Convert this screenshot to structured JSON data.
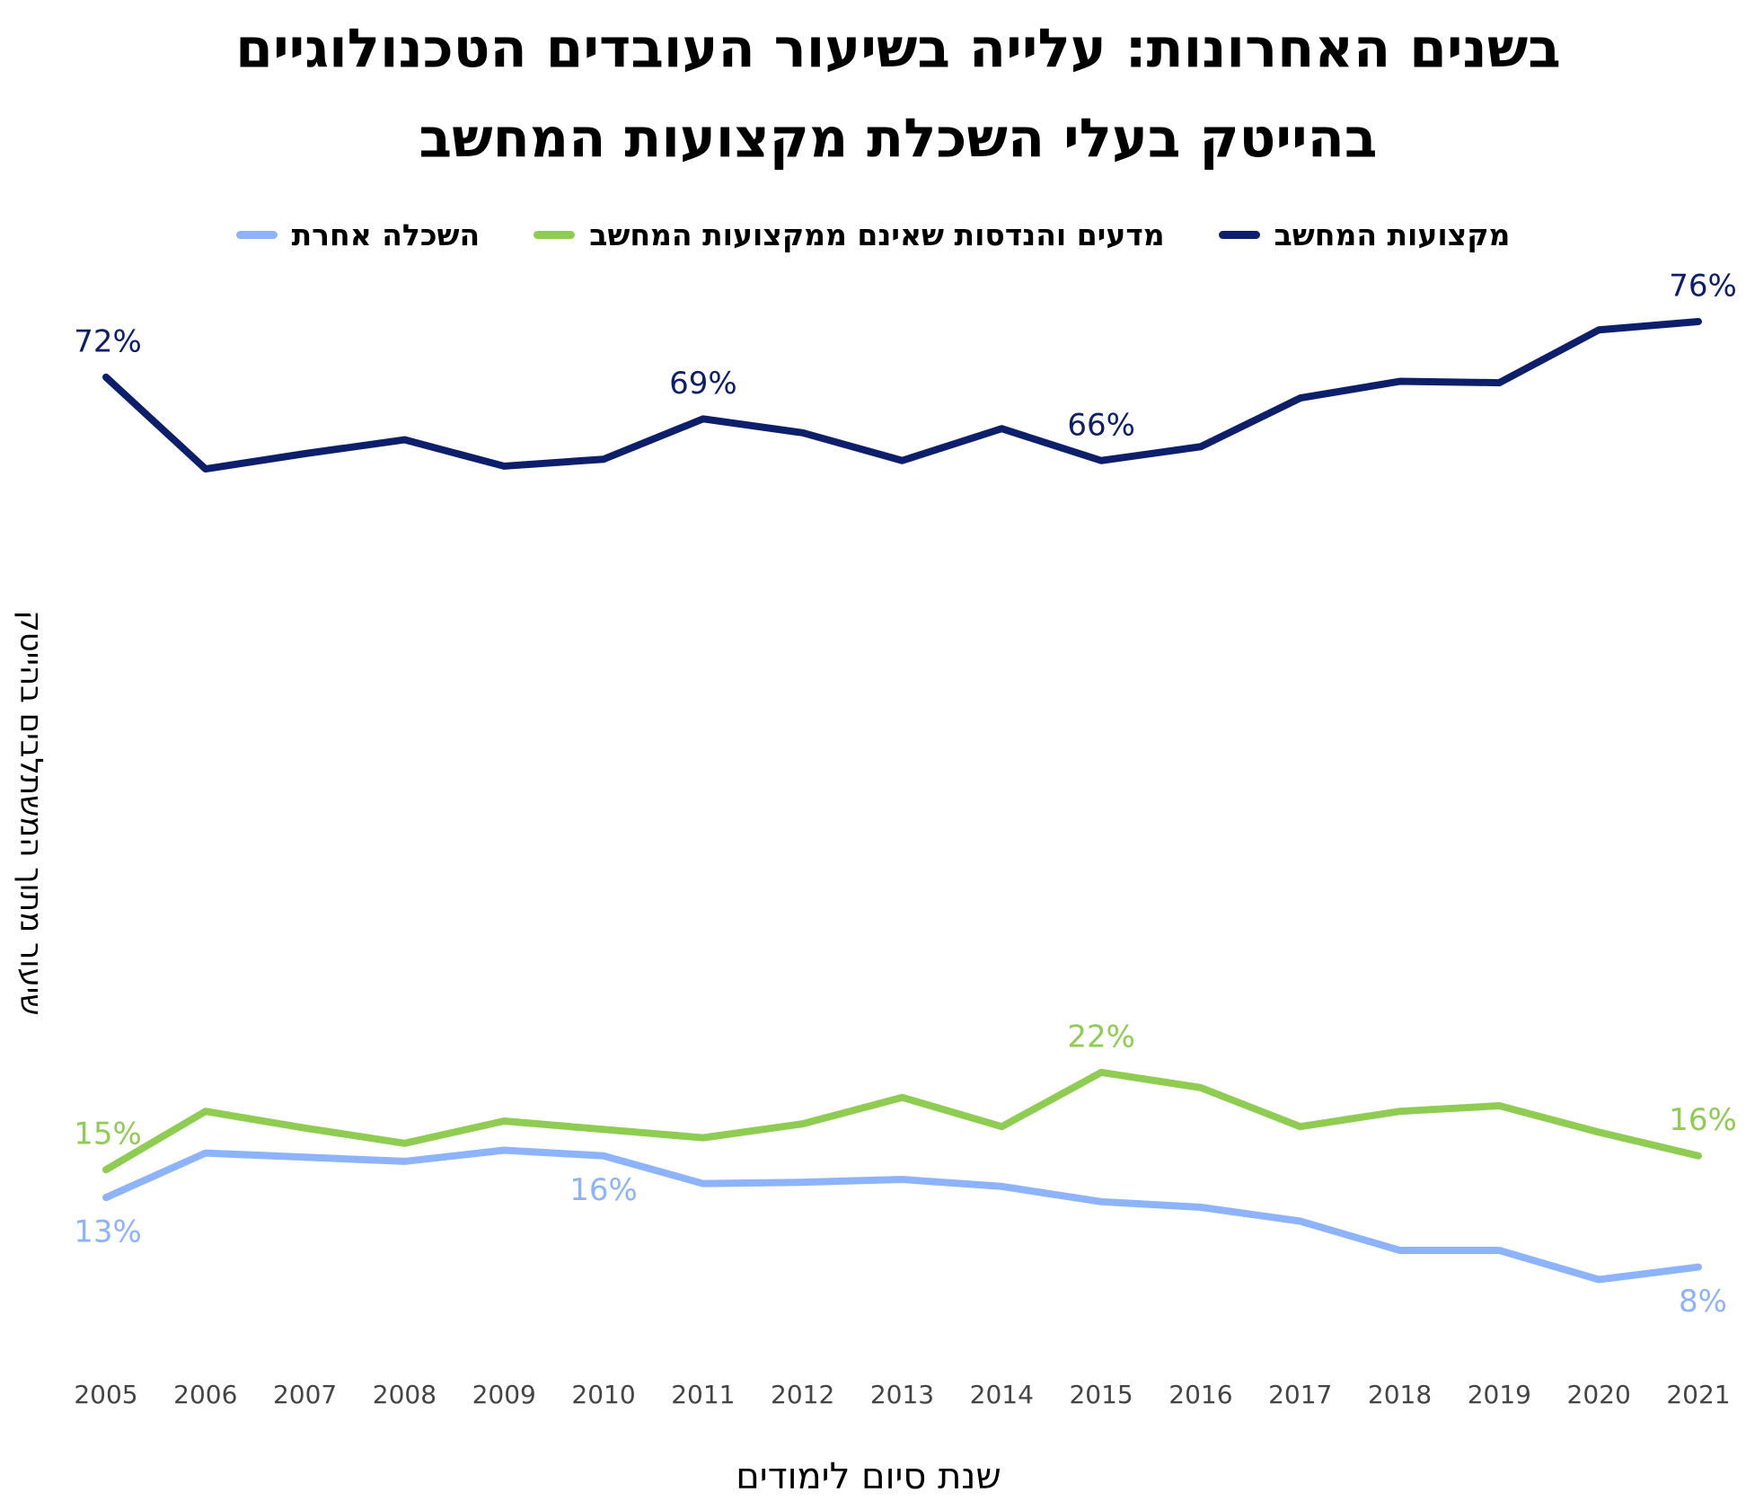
{
  "chart_data": {
    "type": "line",
    "title": [
      "בשנים האחרונות: עלייה בשיעור העובדים הטכנולוגיים",
      "בהייטק בעלי השכלת מקצועות המחשב"
    ],
    "x_label": "שנת סיום לימודים",
    "y_label": "שיעור מתוך המשתלבים בהייטק",
    "categories": [
      "2005",
      "2006",
      "2007",
      "2008",
      "2009",
      "2010",
      "2011",
      "2012",
      "2013",
      "2014",
      "2015",
      "2016",
      "2017",
      "2018",
      "2019",
      "2020",
      "2021"
    ],
    "ylim": [
      5,
      78
    ],
    "series": [
      {
        "name": "מקצועות המחשב",
        "color": "#0d1f6b",
        "label_side": "above",
        "values": [
          72,
          65.4,
          66.5,
          67.5,
          65.6,
          66.1,
          69,
          68,
          66,
          68.3,
          66,
          67,
          70.5,
          71.7,
          71.6,
          75.4,
          76
        ],
        "value_labels": [
          "72%",
          null,
          null,
          null,
          null,
          null,
          "69%",
          null,
          null,
          null,
          "66%",
          null,
          null,
          null,
          null,
          null,
          "76%"
        ]
      },
      {
        "name": "מדעים והנדסות שאינם ממקצועות המחשב",
        "color": "#8fcc52",
        "label_side": "above",
        "values": [
          15,
          19.2,
          18,
          16.9,
          18.5,
          17.9,
          17.3,
          18.3,
          20.2,
          18.1,
          22,
          20.9,
          18.1,
          19.2,
          19.6,
          17.7,
          16
        ],
        "value_labels": [
          "15%",
          null,
          null,
          null,
          null,
          null,
          null,
          null,
          null,
          null,
          "22%",
          null,
          null,
          null,
          null,
          null,
          "16%"
        ]
      },
      {
        "name": "השכלה אחרת",
        "color": "#8db4fa",
        "label_side": "below",
        "values": [
          13,
          16.2,
          15.9,
          15.6,
          16.4,
          16,
          14,
          14.1,
          14.3,
          13.8,
          12.7,
          12.3,
          11.3,
          9.2,
          9.2,
          7.1,
          8
        ],
        "value_labels": [
          "13%",
          null,
          null,
          null,
          null,
          "16%",
          null,
          null,
          null,
          null,
          null,
          null,
          null,
          null,
          null,
          null,
          "8%"
        ]
      }
    ]
  }
}
